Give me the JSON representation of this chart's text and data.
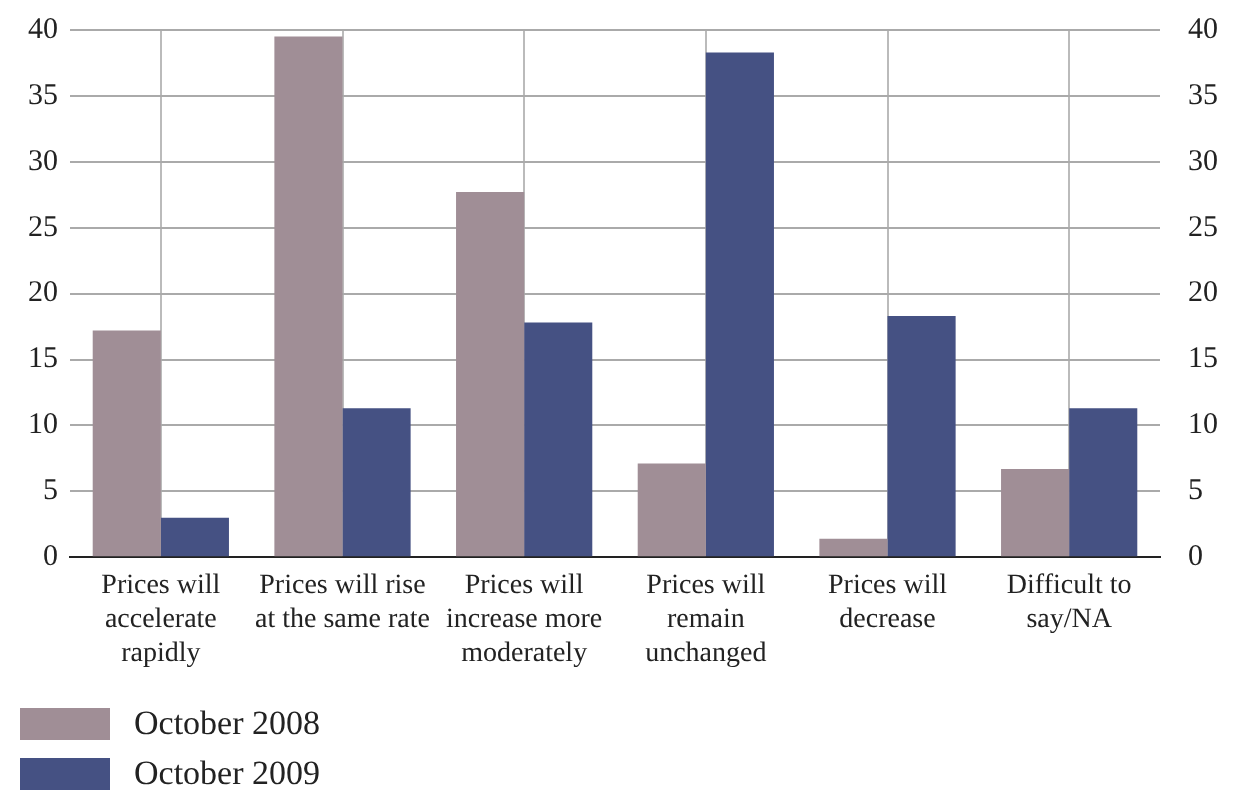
{
  "chart_data": {
    "type": "bar",
    "categories": [
      "Prices will accelerate rapidly",
      "Prices will rise at the same rate",
      "Prices will increase more moderately",
      "Prices will remain unchanged",
      "Prices will decrease",
      "Difficult to say/NA"
    ],
    "series": [
      {
        "name": "October 2008",
        "color": "#a08e96",
        "values": [
          17.2,
          39.5,
          27.7,
          7.1,
          1.4,
          6.7
        ]
      },
      {
        "name": "October 2009",
        "color": "#455183",
        "values": [
          3.0,
          11.3,
          17.8,
          38.3,
          18.3,
          11.3
        ]
      }
    ],
    "ylim": [
      0,
      40
    ],
    "yticks": [
      0,
      5,
      10,
      15,
      20,
      25,
      30,
      35,
      40
    ],
    "y2lim": [
      0,
      40
    ],
    "y2ticks": [
      0,
      5,
      10,
      15,
      20,
      25,
      30,
      35,
      40
    ],
    "grid": true,
    "legend": "bottom left"
  }
}
